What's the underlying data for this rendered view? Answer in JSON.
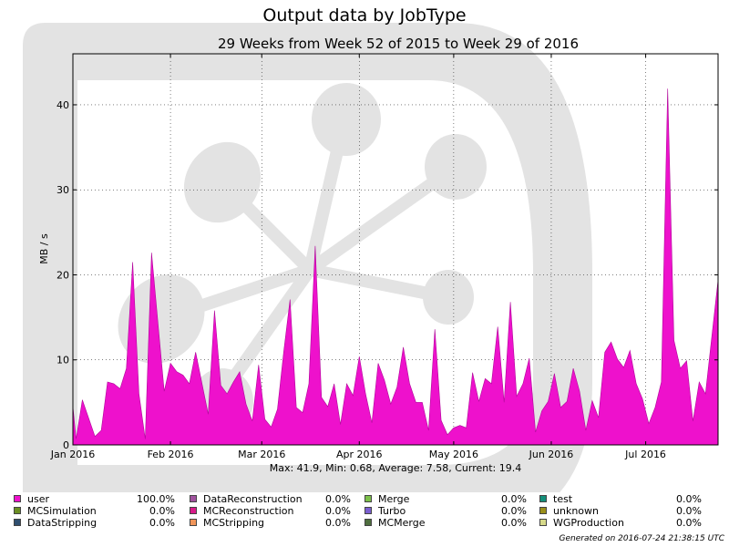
{
  "chart_data": {
    "type": "area",
    "title": "Output data by JobType",
    "subtitle": "29 Weeks from Week 52 of 2015 to Week 29 of 2016",
    "ylabel": "MB / s",
    "xlabel": "",
    "ylim": [
      0,
      46
    ],
    "yticks": [
      0,
      10,
      20,
      30,
      40
    ],
    "xrange": [
      "2016-01-01",
      "2016-07-24"
    ],
    "xticks": [
      {
        "date": "2016-01-01",
        "label": "Jan 2016"
      },
      {
        "date": "2016-02-01",
        "label": "Feb 2016"
      },
      {
        "date": "2016-03-01",
        "label": "Mar 2016"
      },
      {
        "date": "2016-04-01",
        "label": "Apr 2016"
      },
      {
        "date": "2016-05-01",
        "label": "May 2016"
      },
      {
        "date": "2016-06-01",
        "label": "Jun 2016"
      },
      {
        "date": "2016-07-01",
        "label": "Jul 2016"
      }
    ],
    "grid": true,
    "stats": "Max: 41.9, Min: 0.68, Average: 7.58, Current: 19.4",
    "series": [
      {
        "name": "user",
        "color": "#ee11cc",
        "points": [
          [
            "2016-01-01",
            4.5
          ],
          [
            "2016-01-02",
            0.7
          ],
          [
            "2016-01-04",
            5.3
          ],
          [
            "2016-01-08",
            1.0
          ],
          [
            "2016-01-10",
            1.7
          ],
          [
            "2016-01-12",
            7.4
          ],
          [
            "2016-01-14",
            7.2
          ],
          [
            "2016-01-16",
            6.6
          ],
          [
            "2016-01-18",
            9.0
          ],
          [
            "2016-01-20",
            21.5
          ],
          [
            "2016-01-22",
            6.0
          ],
          [
            "2016-01-24",
            0.7
          ],
          [
            "2016-01-26",
            22.6
          ],
          [
            "2016-01-30",
            6.3
          ],
          [
            "2016-02-01",
            9.6
          ],
          [
            "2016-02-03",
            8.6
          ],
          [
            "2016-02-05",
            8.2
          ],
          [
            "2016-02-07",
            7.2
          ],
          [
            "2016-02-09",
            10.9
          ],
          [
            "2016-02-13",
            3.6
          ],
          [
            "2016-02-15",
            15.8
          ],
          [
            "2016-02-17",
            7.0
          ],
          [
            "2016-02-19",
            6.0
          ],
          [
            "2016-02-21",
            7.4
          ],
          [
            "2016-02-23",
            8.6
          ],
          [
            "2016-02-25",
            4.8
          ],
          [
            "2016-02-27",
            2.8
          ],
          [
            "2016-02-29",
            9.4
          ],
          [
            "2016-03-02",
            3.0
          ],
          [
            "2016-03-04",
            2.1
          ],
          [
            "2016-03-06",
            4.2
          ],
          [
            "2016-03-08",
            11.0
          ],
          [
            "2016-03-10",
            17.1
          ],
          [
            "2016-03-12",
            4.4
          ],
          [
            "2016-03-14",
            3.8
          ],
          [
            "2016-03-16",
            7.2
          ],
          [
            "2016-03-18",
            23.4
          ],
          [
            "2016-03-20",
            5.6
          ],
          [
            "2016-03-22",
            4.5
          ],
          [
            "2016-03-24",
            7.2
          ],
          [
            "2016-03-26",
            2.4
          ],
          [
            "2016-03-28",
            7.2
          ],
          [
            "2016-03-30",
            5.8
          ],
          [
            "2016-04-01",
            10.4
          ],
          [
            "2016-04-03",
            6.0
          ],
          [
            "2016-04-05",
            2.6
          ],
          [
            "2016-04-07",
            9.6
          ],
          [
            "2016-04-09",
            7.6
          ],
          [
            "2016-04-11",
            4.8
          ],
          [
            "2016-04-13",
            6.8
          ],
          [
            "2016-04-15",
            11.5
          ],
          [
            "2016-04-17",
            7.2
          ],
          [
            "2016-04-19",
            5.0
          ],
          [
            "2016-04-21",
            5.0
          ],
          [
            "2016-04-23",
            1.7
          ],
          [
            "2016-04-25",
            13.6
          ],
          [
            "2016-04-27",
            2.9
          ],
          [
            "2016-04-29",
            1.2
          ],
          [
            "2016-05-01",
            2.0
          ],
          [
            "2016-05-03",
            2.3
          ],
          [
            "2016-05-05",
            2.0
          ],
          [
            "2016-05-07",
            8.5
          ],
          [
            "2016-05-09",
            5.1
          ],
          [
            "2016-05-11",
            7.8
          ],
          [
            "2016-05-13",
            7.2
          ],
          [
            "2016-05-15",
            13.9
          ],
          [
            "2016-05-17",
            5.0
          ],
          [
            "2016-05-19",
            16.8
          ],
          [
            "2016-05-21",
            5.7
          ],
          [
            "2016-05-23",
            7.2
          ],
          [
            "2016-05-25",
            10.2
          ],
          [
            "2016-05-27",
            1.5
          ],
          [
            "2016-05-29",
            4.0
          ],
          [
            "2016-05-31",
            5.1
          ],
          [
            "2016-06-02",
            8.4
          ],
          [
            "2016-06-04",
            4.4
          ],
          [
            "2016-06-06",
            5.1
          ],
          [
            "2016-06-08",
            9.0
          ],
          [
            "2016-06-10",
            6.3
          ],
          [
            "2016-06-12",
            1.7
          ],
          [
            "2016-06-14",
            5.2
          ],
          [
            "2016-06-16",
            3.2
          ],
          [
            "2016-06-18",
            10.9
          ],
          [
            "2016-06-20",
            12.1
          ],
          [
            "2016-06-22",
            10.1
          ],
          [
            "2016-06-24",
            9.1
          ],
          [
            "2016-06-26",
            11.1
          ],
          [
            "2016-06-28",
            7.2
          ],
          [
            "2016-06-30",
            5.4
          ],
          [
            "2016-07-02",
            2.5
          ],
          [
            "2016-07-04",
            4.4
          ],
          [
            "2016-07-06",
            7.4
          ],
          [
            "2016-07-08",
            41.9
          ],
          [
            "2016-07-10",
            12.3
          ],
          [
            "2016-07-12",
            9.0
          ],
          [
            "2016-07-14",
            9.9
          ],
          [
            "2016-07-16",
            2.8
          ],
          [
            "2016-07-18",
            7.4
          ],
          [
            "2016-07-20",
            6.0
          ],
          [
            "2016-07-24",
            19.4
          ]
        ]
      }
    ]
  },
  "legend": [
    {
      "label": "user",
      "pct": "100.0%",
      "color": "#ee11cc"
    },
    {
      "label": "MCSimulation",
      "pct": "0.0%",
      "color": "#6b8e23"
    },
    {
      "label": "DataStripping",
      "pct": "0.0%",
      "color": "#2f4f6f"
    },
    {
      "label": "DataReconstruction",
      "pct": "0.0%",
      "color": "#a0529e"
    },
    {
      "label": "MCReconstruction",
      "pct": "0.0%",
      "color": "#d81b8a"
    },
    {
      "label": "MCStripping",
      "pct": "0.0%",
      "color": "#f0955a"
    },
    {
      "label": "Merge",
      "pct": "0.0%",
      "color": "#7cc04a"
    },
    {
      "label": "Turbo",
      "pct": "0.0%",
      "color": "#7b5fd0"
    },
    {
      "label": "MCMerge",
      "pct": "0.0%",
      "color": "#4f6f3f"
    },
    {
      "label": "test",
      "pct": "0.0%",
      "color": "#138f7a"
    },
    {
      "label": "unknown",
      "pct": "0.0%",
      "color": "#9a8f1a"
    },
    {
      "label": "WGProduction",
      "pct": "0.0%",
      "color": "#d6d98a"
    }
  ],
  "footer": "Generated on 2016-07-24 21:38:15 UTC"
}
